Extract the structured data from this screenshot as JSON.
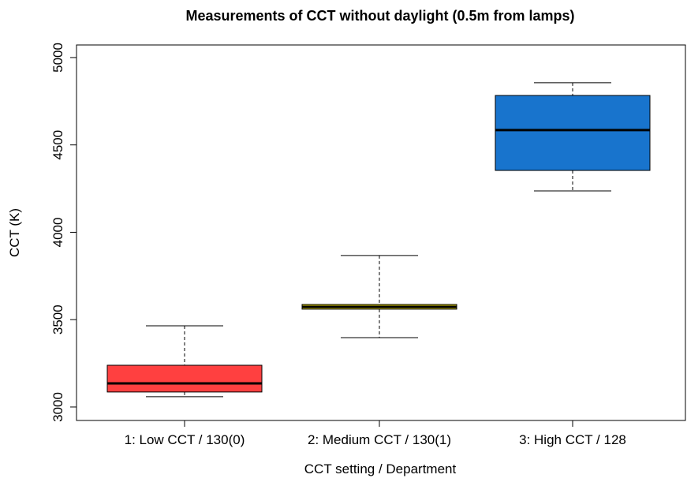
{
  "chart_data": {
    "type": "box",
    "title": "Measurements of CCT without daylight (0.5m from lamps)",
    "x_label": "CCT setting / Department",
    "y_label": "CCT (K)",
    "categories": [
      "1: Low CCT / 130(0)",
      "2: Medium CCT / 130(1)",
      "3: High CCT / 128"
    ],
    "series": [
      {
        "color": "#ff4040",
        "min": 3059,
        "q1": 3086,
        "median": 3135,
        "q3": 3239,
        "max": 3465
      },
      {
        "color": "#d4c400",
        "min": 3397,
        "q1": 3560,
        "median": 3573,
        "q3": 3587,
        "max": 3867
      },
      {
        "color": "#1874cd",
        "min": 4237,
        "q1": 4354,
        "median": 4585,
        "q3": 4783,
        "max": 4856
      }
    ],
    "ylim": [
      2923,
      5072
    ],
    "yticks": [
      3000,
      3500,
      4000,
      4500,
      5000
    ]
  }
}
